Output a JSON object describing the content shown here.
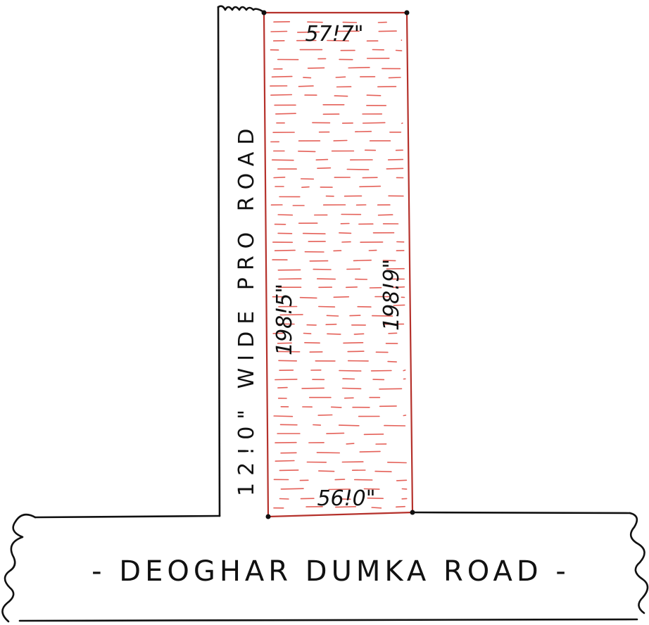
{
  "plot": {
    "top_width": "57!7\"",
    "bottom_width": "56!0\"",
    "left_length": "198!5\"",
    "right_length": "198!9\"",
    "hatch_color": "#e0453c",
    "edge_color": "#b5312b"
  },
  "side_road": {
    "label": "12!0\" WIDE PRO ROAD"
  },
  "main_road": {
    "label": "- DEOGHAR DUMKA ROAD -"
  }
}
